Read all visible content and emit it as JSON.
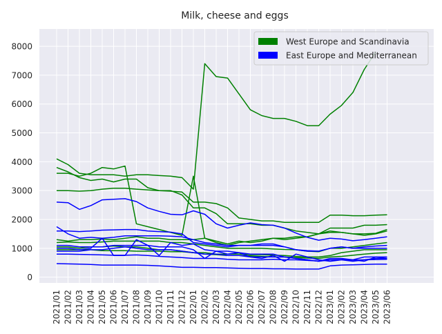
{
  "chart_data": {
    "type": "line",
    "title": "Milk, cheese and eggs",
    "xlabel": "",
    "ylabel": "",
    "ylim": [
      -200,
      8600
    ],
    "yticks": [
      0,
      1000,
      2000,
      3000,
      4000,
      5000,
      6000,
      7000,
      8000
    ],
    "grid": true,
    "legend_position": "top-right",
    "legend": [
      {
        "label": "West Europe and Scandinavia",
        "color": "#008000"
      },
      {
        "label": "East Europe and Mediterranean",
        "color": "#0000ff"
      }
    ],
    "x": [
      "2021/01",
      "2021/02",
      "2021/03",
      "2021/04",
      "2021/05",
      "2021/06",
      "2021/07",
      "2021/08",
      "2021/09",
      "2021/10",
      "2021/11",
      "2021/12",
      "2022/01",
      "2022/02",
      "2022/03",
      "2022/04",
      "2022/05",
      "2022/06",
      "2022/07",
      "2022/08",
      "2022/09",
      "2022/10",
      "2022/11",
      "2022/12",
      "2023/01",
      "2023/02",
      "2023/03",
      "2023/04",
      "2023/05",
      "2023/06"
    ],
    "series": [
      {
        "group": "West Europe and Scandinavia",
        "color": "#008000",
        "values": [
          3600,
          3600,
          3500,
          3600,
          3800,
          3750,
          3850,
          1850,
          1750,
          1650,
          1550,
          1450,
          3500,
          1350,
          1200,
          1100,
          1200,
          1250,
          1300,
          1350,
          1300,
          1350,
          1400,
          1500,
          1600,
          1550,
          1500,
          1500,
          1520,
          1650
        ]
      },
      {
        "group": "West Europe and Scandinavia",
        "color": "#008000",
        "values": [
          4100,
          3900,
          3600,
          3550,
          3550,
          3550,
          3500,
          3550,
          3550,
          3520,
          3500,
          3450,
          3050,
          7400,
          6950,
          6900,
          6350,
          5800,
          5600,
          5500,
          5500,
          5400,
          5250,
          5250,
          5650,
          5950,
          6400,
          7200,
          7800,
          null
        ]
      },
      {
        "group": "West Europe and Scandinavia",
        "color": "#008000",
        "values": [
          3800,
          3650,
          3450,
          3350,
          3400,
          3300,
          3400,
          3400,
          3100,
          3000,
          3000,
          2850,
          2400,
          2400,
          2200,
          1850,
          1850,
          1850,
          1800,
          1800,
          1700,
          1600,
          1550,
          1500,
          1550,
          1550,
          1500,
          1450,
          1500,
          1600
        ]
      },
      {
        "group": "West Europe and Scandinavia",
        "color": "#008000",
        "values": [
          3000,
          3000,
          2980,
          3000,
          3050,
          3080,
          3080,
          3050,
          3020,
          3000,
          2980,
          2950,
          2600,
          2600,
          2550,
          2400,
          2050,
          2000,
          1950,
          1950,
          1900,
          1900,
          1900,
          1900,
          2150,
          2150,
          2130,
          2130,
          2150,
          2160
        ]
      },
      {
        "group": "West Europe and Scandinavia",
        "color": "#008000",
        "values": [
          1300,
          1250,
          1300,
          1300,
          1320,
          1300,
          1350,
          1400,
          1350,
          1350,
          1300,
          1300,
          1300,
          1350,
          1250,
          1150,
          1250,
          1200,
          1250,
          1350,
          1350,
          1400,
          1400,
          1500,
          1700,
          1700,
          1700,
          1800,
          1800,
          1820
        ]
      },
      {
        "group": "West Europe and Scandinavia",
        "color": "#008000",
        "values": [
          1050,
          1050,
          1000,
          1050,
          1050,
          1080,
          1050,
          1050,
          1000,
          950,
          950,
          900,
          850,
          850,
          800,
          800,
          800,
          780,
          780,
          760,
          750,
          720,
          700,
          700,
          750,
          850,
          900,
          950,
          950,
          950
        ]
      },
      {
        "group": "West Europe and Scandinavia",
        "color": "#008000",
        "values": [
          950,
          950,
          950,
          950,
          920,
          920,
          920,
          900,
          900,
          900,
          880,
          880,
          850,
          800,
          780,
          750,
          750,
          740,
          720,
          700,
          700,
          680,
          660,
          650,
          700,
          720,
          760,
          800,
          830,
          850
        ]
      },
      {
        "group": "West Europe and Scandinavia",
        "color": "#008000",
        "values": [
          1200,
          1220,
          1200,
          1200,
          1220,
          1250,
          1250,
          1250,
          1250,
          1250,
          1200,
          1200,
          1150,
          1100,
          1050,
          1000,
          1000,
          1000,
          1000,
          980,
          960,
          950,
          900,
          880,
          1000,
          1000,
          1050,
          1100,
          1150,
          1200
        ]
      },
      {
        "group": "East Europe and Mediterranean",
        "color": "#0000ff",
        "values": [
          2600,
          2580,
          2350,
          2480,
          2680,
          2700,
          2720,
          2620,
          2400,
          2280,
          2180,
          2160,
          2300,
          2180,
          1850,
          1700,
          1800,
          1880,
          1820,
          1800,
          1700,
          1530,
          1380,
          1280,
          1350,
          1320,
          1260,
          1300,
          1350,
          1400
        ]
      },
      {
        "group": "East Europe and Mediterranean",
        "color": "#0000ff",
        "values": [
          1750,
          1500,
          1350,
          1380,
          1350,
          1380,
          1430,
          1430,
          1430,
          1430,
          1420,
          1400,
          1300,
          1200,
          1150,
          1100,
          1100,
          1100,
          1100,
          1100,
          1050,
          950,
          920,
          900,
          1000,
          1050,
          1000,
          1050,
          1080,
          1100
        ]
      },
      {
        "group": "East Europe and Mediterranean",
        "color": "#0000ff",
        "values": [
          1600,
          1600,
          1580,
          1600,
          1630,
          1640,
          1650,
          1650,
          1600,
          1580,
          1560,
          1500,
          1200,
          1150,
          1100,
          1050,
          1100,
          1100,
          1150,
          1150,
          1050,
          950,
          900,
          900,
          1000,
          1050,
          1000,
          1000,
          1000,
          1000
        ]
      },
      {
        "group": "East Europe and Mediterranean",
        "color": "#0000ff",
        "values": [
          1100,
          1100,
          1050,
          1050,
          1050,
          1100,
          1100,
          1100,
          1100,
          1050,
          1050,
          1050,
          950,
          650,
          900,
          800,
          850,
          700,
          650,
          750,
          550,
          800,
          700,
          600,
          550,
          600,
          600,
          550,
          700,
          650
        ]
      },
      {
        "group": "East Europe and Mediterranean",
        "color": "#0000ff",
        "values": [
          1000,
          1000,
          950,
          1000,
          1350,
          750,
          750,
          1300,
          1100,
          750,
          1200,
          1100,
          1150,
          950,
          900,
          900,
          850,
          800,
          800,
          800,
          700,
          650,
          600,
          550,
          600,
          600,
          550,
          600,
          650,
          650
        ]
      },
      {
        "group": "East Europe and Mediterranean",
        "color": "#0000ff",
        "values": [
          900,
          900,
          900,
          950,
          950,
          1000,
          1050,
          1000,
          950,
          950,
          950,
          900,
          850,
          800,
          800,
          750,
          750,
          700,
          700,
          700,
          700,
          650,
          600,
          550,
          650,
          650,
          600,
          700,
          700,
          700
        ]
      },
      {
        "group": "East Europe and Mediterranean",
        "color": "#0000ff",
        "values": [
          800,
          800,
          790,
          780,
          770,
          760,
          760,
          770,
          750,
          720,
          700,
          680,
          650,
          650,
          650,
          620,
          600,
          600,
          600,
          620,
          600,
          600,
          580,
          560,
          600,
          610,
          590,
          600,
          610,
          620
        ]
      },
      {
        "group": "East Europe and Mediterranean",
        "color": "#0000ff",
        "values": [
          470,
          460,
          450,
          440,
          420,
          420,
          420,
          420,
          410,
          390,
          370,
          340,
          340,
          330,
          330,
          320,
          310,
          300,
          300,
          290,
          290,
          280,
          280,
          280,
          390,
          420,
          430,
          440,
          450,
          450
        ]
      }
    ]
  }
}
